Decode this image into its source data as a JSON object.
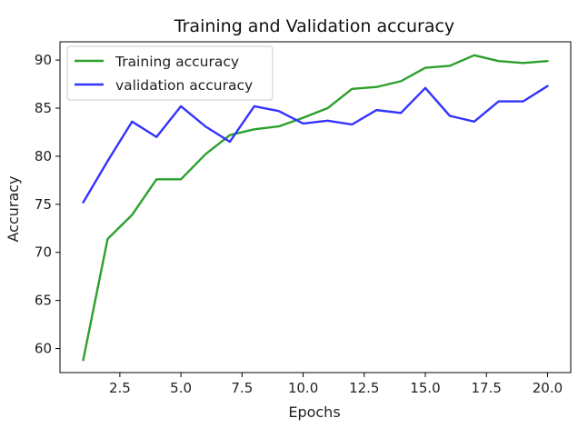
{
  "chart_data": {
    "type": "line",
    "title": "Training and Validation accuracy",
    "xlabel": "Epochs",
    "ylabel": "Accuracy",
    "xlim": [
      0.05,
      20.95
    ],
    "ylim": [
      57.5,
      91.9
    ],
    "xticks": [
      2.5,
      5.0,
      7.5,
      10.0,
      12.5,
      15.0,
      17.5,
      20.0
    ],
    "xtick_labels": [
      "2.5",
      "5.0",
      "7.5",
      "10.0",
      "12.5",
      "15.0",
      "17.5",
      "20.0"
    ],
    "yticks": [
      60,
      65,
      70,
      75,
      80,
      85,
      90
    ],
    "ytick_labels": [
      "60",
      "65",
      "70",
      "75",
      "80",
      "85",
      "90"
    ],
    "grid": false,
    "legend_position": "top-left",
    "x": [
      1,
      2,
      3,
      4,
      5,
      6,
      7,
      8,
      9,
      10,
      11,
      12,
      13,
      14,
      15,
      16,
      17,
      18,
      19,
      20
    ],
    "series": [
      {
        "name": "Training accuracy",
        "color": "#2ca02c",
        "values": [
          58.8,
          71.4,
          73.9,
          77.6,
          77.6,
          80.2,
          82.2,
          82.8,
          83.1,
          84.0,
          85.0,
          87.0,
          87.2,
          87.8,
          89.2,
          89.4,
          90.5,
          89.9,
          89.7,
          89.9
        ]
      },
      {
        "name": "validation accuracy",
        "color": "#3333ff",
        "values": [
          75.2,
          79.5,
          83.6,
          82.0,
          85.2,
          83.1,
          81.5,
          85.2,
          84.7,
          83.4,
          83.7,
          83.3,
          84.8,
          84.5,
          87.1,
          84.2,
          83.6,
          85.7,
          85.7,
          87.3
        ]
      }
    ]
  }
}
